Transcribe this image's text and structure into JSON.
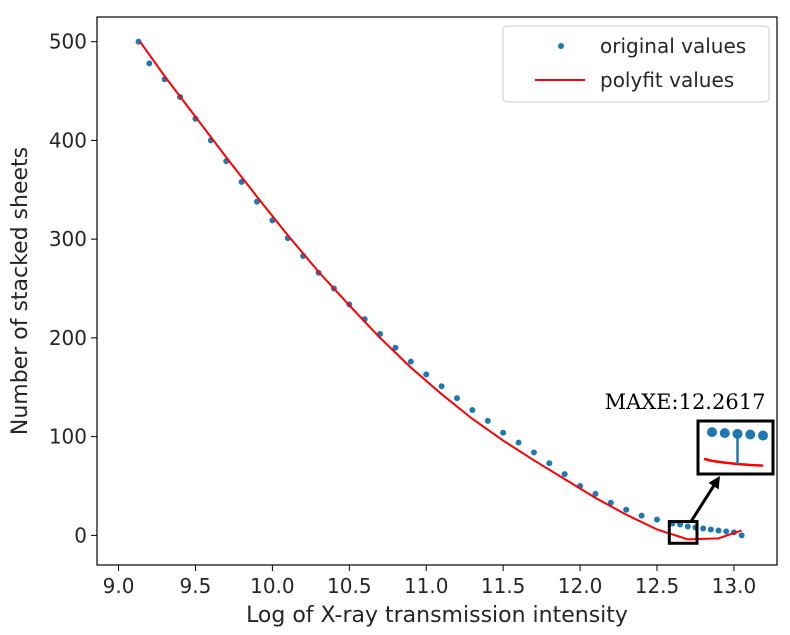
{
  "chart_data": {
    "type": "scatter",
    "title": "",
    "xlabel": "Log of X-ray transmission intensity",
    "ylabel": "Number of stacked sheets",
    "xlim": [
      8.86,
      13.28
    ],
    "ylim": [
      -30,
      525
    ],
    "xticks": [
      9.0,
      9.5,
      10.0,
      10.5,
      11.0,
      11.5,
      12.0,
      12.5,
      13.0
    ],
    "xtick_labels": [
      "9.0",
      "9.5",
      "10.0",
      "10.5",
      "11.0",
      "11.5",
      "12.0",
      "12.5",
      "13.0"
    ],
    "yticks": [
      0,
      100,
      200,
      300,
      400,
      500
    ],
    "ytick_labels": [
      "0",
      "100",
      "200",
      "300",
      "400",
      "500"
    ],
    "grid": false,
    "legend": {
      "placement": "top-right",
      "entries": [
        {
          "label": "original values",
          "marker": "dot",
          "color": "#1f77b4"
        },
        {
          "label": "polyfit values",
          "marker": "line",
          "color": "#ff0000"
        }
      ]
    },
    "series": [
      {
        "name": "original values",
        "kind": "scatter",
        "color": "#1f77b4",
        "x": [
          9.13,
          9.2,
          9.3,
          9.4,
          9.5,
          9.6,
          9.7,
          9.8,
          9.9,
          10.0,
          10.1,
          10.2,
          10.3,
          10.4,
          10.5,
          10.6,
          10.7,
          10.8,
          10.9,
          11.0,
          11.1,
          11.2,
          11.3,
          11.4,
          11.5,
          11.6,
          11.7,
          11.8,
          11.9,
          12.0,
          12.1,
          12.2,
          12.3,
          12.4,
          12.5,
          12.6,
          12.65,
          12.7,
          12.75,
          12.8,
          12.85,
          12.9,
          12.95,
          13.0,
          13.05
        ],
        "y": [
          500,
          478,
          462,
          444,
          422,
          400,
          379,
          358,
          338,
          319,
          301,
          283,
          266,
          250,
          234,
          219,
          204,
          190,
          176,
          163,
          151,
          139,
          127,
          116,
          104,
          94,
          84,
          73,
          62,
          50,
          42,
          33,
          26,
          20,
          16,
          12,
          11,
          9,
          8,
          7,
          6,
          5,
          4,
          3,
          0
        ]
      },
      {
        "name": "polyfit values",
        "kind": "line",
        "color": "#ff0000",
        "x": [
          9.14,
          9.3,
          9.5,
          9.7,
          9.9,
          10.1,
          10.3,
          10.5,
          10.7,
          10.9,
          11.1,
          11.3,
          11.5,
          11.7,
          11.9,
          12.1,
          12.3,
          12.5,
          12.7,
          12.9,
          13.05
        ],
        "y": [
          500,
          465,
          424,
          383,
          343,
          304,
          267,
          233,
          200,
          170,
          143,
          118,
          96,
          76,
          57,
          38,
          21,
          6,
          -4,
          -3,
          5
        ]
      }
    ],
    "annotation": {
      "text": "MAXE:12.2617",
      "highlight_x_range": [
        12.58,
        12.76
      ],
      "highlight_y_range": [
        -8,
        14
      ],
      "inset_samples": [
        {
          "dot_y": 10.5,
          "fit_y": 1.5
        },
        {
          "dot_y": 10.2,
          "fit_y": 1.0
        },
        {
          "dot_y": 10.0,
          "fit_y": 0.6
        },
        {
          "dot_y": 9.8,
          "fit_y": 0.3
        },
        {
          "dot_y": 9.5,
          "fit_y": 0.1
        }
      ],
      "max_error_sample": 2
    }
  }
}
